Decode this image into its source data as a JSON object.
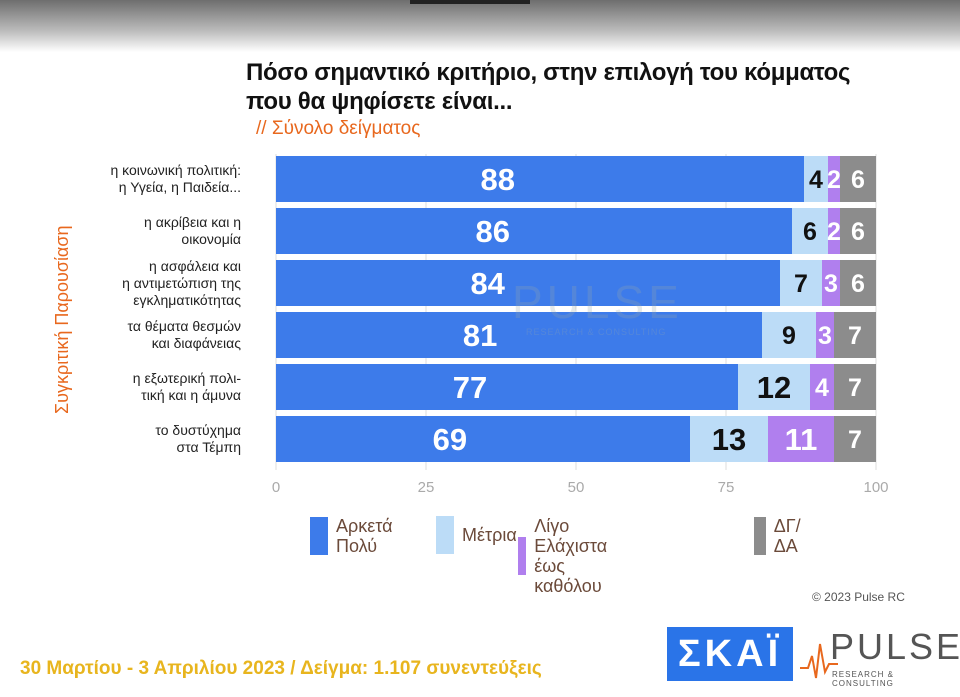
{
  "title_lines": [
    "Πόσο σημαντικό κριτήριο, στην επιλογή του κόμματος",
    "που θα ψηφίσετε είναι..."
  ],
  "subtitle": "// Σύνολο δείγματος",
  "side_label": "Συγκριτική Παρουσίαση",
  "chart_data": {
    "type": "bar",
    "orientation": "horizontal",
    "stacked": true,
    "categories": [
      [
        "η κοινωνική πολιτική:",
        "η Υγεία, η Παιδεία..."
      ],
      [
        "η ακρίβεια και η",
        "οικονομία"
      ],
      [
        "η ασφάλεια και",
        "η αντιμετώπιση της",
        "εγκληματικότητας"
      ],
      [
        "τα θέματα θεσμών",
        "και διαφάνειας"
      ],
      [
        "η εξωτερική πολι-",
        "τική και η άμυνα"
      ],
      [
        "το δυστύχημα",
        "στα Τέμπη"
      ]
    ],
    "series": [
      {
        "name": "Αρκετά Πολύ",
        "color": "#3d7bea",
        "label_color": "#ffffff",
        "values": [
          88,
          86,
          84,
          81,
          77,
          69
        ]
      },
      {
        "name": "Μέτρια",
        "color": "#bcdcf7",
        "label_color": "#111111",
        "values": [
          4,
          6,
          7,
          9,
          12,
          13
        ]
      },
      {
        "name": "Λίγο Ελάχιστα έως καθόλου",
        "color": "#b07fee",
        "label_color": "#ffffff",
        "values": [
          2,
          2,
          3,
          3,
          4,
          11
        ]
      },
      {
        "name": "ΔΓ/ΔΑ",
        "color": "#8c8c8c",
        "label_color": "#ffffff",
        "values": [
          6,
          6,
          6,
          7,
          7,
          7
        ]
      }
    ],
    "xlim": [
      0,
      100
    ],
    "xticks": [
      0,
      25,
      50,
      75,
      100
    ],
    "legend_position": "bottom"
  },
  "legend": [
    {
      "lines": [
        "Αρκετά",
        "Πολύ"
      ],
      "color": "#3d7bea"
    },
    {
      "lines": [
        "Μέτρια"
      ],
      "color": "#bcdcf7"
    },
    {
      "lines": [
        "Λίγο",
        "Ελάχιστα έως καθόλου"
      ],
      "color": "#b07fee"
    },
    {
      "lines": [
        "ΔΓ/ΔΑ"
      ],
      "color": "#8c8c8c"
    }
  ],
  "copyright": "© 2023 Pulse RC",
  "footer": "30 Μαρτίου - 3  Απριλίου  2023  /  Δείγμα:  1.107 συνεντεύξεις",
  "logos": {
    "skai": "ΣΚΑΪ",
    "pulse": "PULSE",
    "pulse_sub": "RESEARCH & CONSULTING",
    "watermark": "PULSE",
    "watermark_sub": "RESEARCH & CONSULTING"
  }
}
